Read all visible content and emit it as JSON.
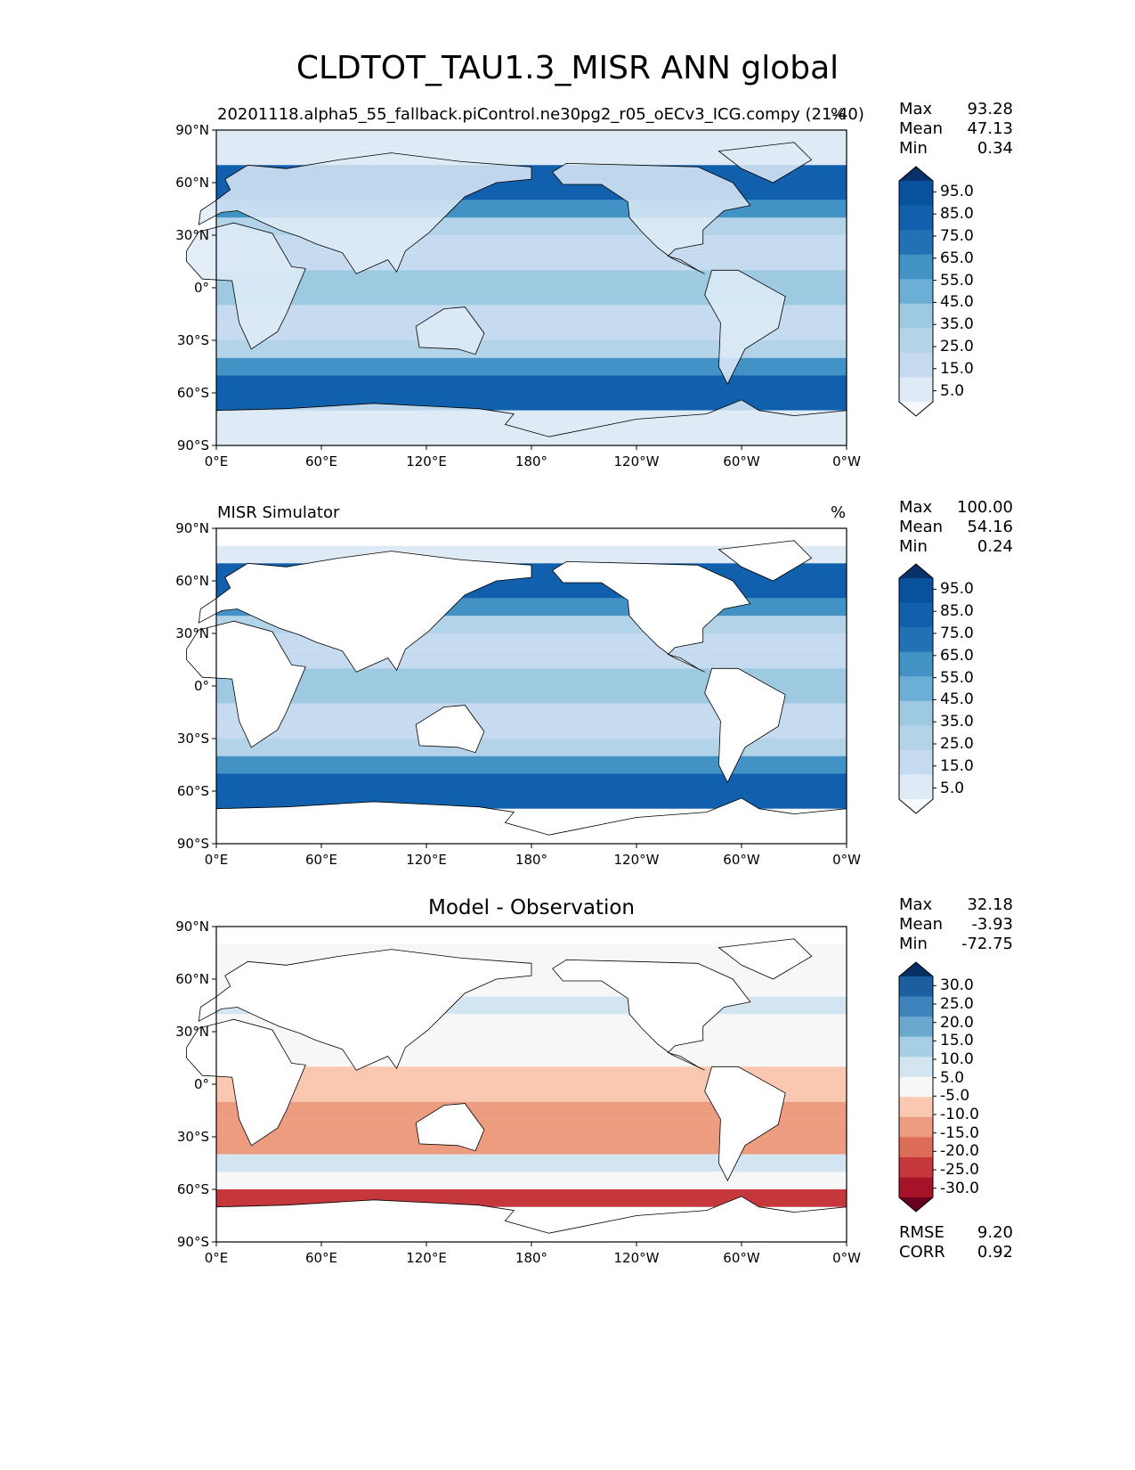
{
  "figure": {
    "title": "CLDTOT_TAU1.3_MISR ANN global"
  },
  "axes": {
    "lat_ticks": [
      "90°N",
      "60°N",
      "30°N",
      "0°",
      "30°S",
      "60°S",
      "90°S"
    ],
    "lon_ticks": [
      "0°E",
      "60°E",
      "120°E",
      "180°",
      "120°W",
      "60°W",
      "0°W"
    ]
  },
  "panels": [
    {
      "id": "model",
      "title_left": "20201118.alpha5_55_fallback.piControl.ne30pg2_r05_oECv3_ICG.compy (21-40)",
      "title_right": "%",
      "title_center": "",
      "stats": [
        {
          "label": "Max",
          "value": "93.28"
        },
        {
          "label": "Mean",
          "value": "47.13"
        },
        {
          "label": "Min",
          "value": "0.34"
        }
      ],
      "colorbar": [
        "95.0",
        "85.0",
        "75.0",
        "65.0",
        "55.0",
        "45.0",
        "35.0",
        "25.0",
        "15.0",
        "5.0"
      ]
    },
    {
      "id": "obs",
      "title_left": "MISR Simulator",
      "title_right": "%",
      "title_center": "",
      "stats": [
        {
          "label": "Max",
          "value": "100.00"
        },
        {
          "label": "Mean",
          "value": "54.16"
        },
        {
          "label": "Min",
          "value": "0.24"
        }
      ],
      "colorbar": [
        "95.0",
        "85.0",
        "75.0",
        "65.0",
        "55.0",
        "45.0",
        "35.0",
        "25.0",
        "15.0",
        "5.0"
      ]
    },
    {
      "id": "diff",
      "title_left": "",
      "title_right": "",
      "title_center": "Model - Observation",
      "stats": [
        {
          "label": "Max",
          "value": "32.18"
        },
        {
          "label": "Mean",
          "value": "-3.93"
        },
        {
          "label": "Min",
          "value": "-72.75"
        }
      ],
      "colorbar": [
        "30.0",
        "25.0",
        "20.0",
        "15.0",
        "10.0",
        "5.0",
        "-5.0",
        "-10.0",
        "-15.0",
        "-20.0",
        "-25.0",
        "-30.0"
      ],
      "metrics": [
        {
          "label": "RMSE",
          "value": "9.20"
        },
        {
          "label": "CORR",
          "value": "0.92"
        }
      ]
    }
  ],
  "colors": {
    "blues": [
      "#f7fbff",
      "#deebf7",
      "#c6dbef",
      "#b3d3e8",
      "#9ecae1",
      "#6baed6",
      "#4292c6",
      "#2171b5",
      "#1060ad",
      "#08519c",
      "#08306b"
    ],
    "diverging": [
      "#67001f",
      "#a51429",
      "#c5373b",
      "#dc6b58",
      "#ee9c80",
      "#fac8b1",
      "#f7f7f7",
      "#d2e5f0",
      "#a6cee4",
      "#6ba8d0",
      "#3b85bc",
      "#1c5fa0",
      "#053061"
    ]
  }
}
